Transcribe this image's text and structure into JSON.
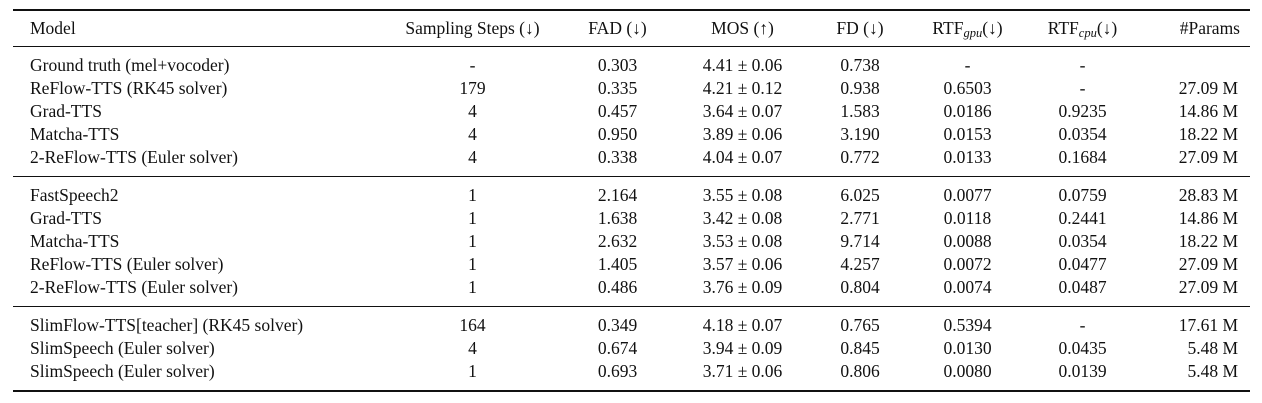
{
  "colors": {
    "text": "#111111",
    "background": "#ffffff",
    "rule": "#111111"
  },
  "table": {
    "columns": [
      {
        "id": "model",
        "parts": [
          {
            "text": "Model"
          }
        ]
      },
      {
        "id": "steps",
        "parts": [
          {
            "text": "Sampling Steps (↓)"
          }
        ]
      },
      {
        "id": "fad",
        "parts": [
          {
            "text": "FAD (↓)"
          }
        ]
      },
      {
        "id": "mos",
        "parts": [
          {
            "text": "MOS (↑)"
          }
        ]
      },
      {
        "id": "fd",
        "parts": [
          {
            "text": "FD (↓)"
          }
        ]
      },
      {
        "id": "rtf_gpu",
        "parts": [
          {
            "text": "RTF"
          },
          {
            "sub": "gpu"
          },
          {
            "text": "(↓)"
          }
        ]
      },
      {
        "id": "rtf_cpu",
        "parts": [
          {
            "text": "RTF"
          },
          {
            "sub": "cpu"
          },
          {
            "text": "(↓)"
          }
        ]
      },
      {
        "id": "params",
        "parts": [
          {
            "text": "#Params"
          }
        ]
      }
    ],
    "sections": [
      {
        "rows": [
          {
            "model": "Ground truth (mel+vocoder)",
            "steps": "-",
            "fad": "0.303",
            "mos": "4.41 ± 0.06",
            "fd": "0.738",
            "rtf_gpu": "-",
            "rtf_cpu": "-",
            "params": ""
          },
          {
            "model": "ReFlow-TTS (RK45 solver)",
            "steps": "179",
            "fad": "0.335",
            "mos": "4.21 ± 0.12",
            "fd": "0.938",
            "rtf_gpu": "0.6503",
            "rtf_cpu": "-",
            "params": "27.09 M"
          },
          {
            "model": "Grad-TTS",
            "steps": "4",
            "fad": "0.457",
            "mos": "3.64 ± 0.07",
            "fd": "1.583",
            "rtf_gpu": "0.0186",
            "rtf_cpu": "0.9235",
            "params": "14.86 M"
          },
          {
            "model": "Matcha-TTS",
            "steps": "4",
            "fad": "0.950",
            "mos": "3.89 ± 0.06",
            "fd": "3.190",
            "rtf_gpu": "0.0153",
            "rtf_cpu": "0.0354",
            "params": "18.22 M"
          },
          {
            "model": "2-ReFlow-TTS (Euler solver)",
            "steps": "4",
            "fad": "0.338",
            "mos": "4.04 ± 0.07",
            "fd": "0.772",
            "rtf_gpu": "0.0133",
            "rtf_cpu": "0.1684",
            "params": "27.09 M"
          }
        ]
      },
      {
        "rows": [
          {
            "model": "FastSpeech2",
            "steps": "1",
            "fad": "2.164",
            "mos": "3.55 ± 0.08",
            "fd": "6.025",
            "rtf_gpu": "0.0077",
            "rtf_cpu": "0.0759",
            "params": "28.83 M"
          },
          {
            "model": "Grad-TTS",
            "steps": "1",
            "fad": "1.638",
            "mos": "3.42 ± 0.08",
            "fd": "2.771",
            "rtf_gpu": "0.0118",
            "rtf_cpu": "0.2441",
            "params": "14.86 M"
          },
          {
            "model": "Matcha-TTS",
            "steps": "1",
            "fad": "2.632",
            "mos": "3.53 ± 0.08",
            "fd": "9.714",
            "rtf_gpu": "0.0088",
            "rtf_cpu": "0.0354",
            "params": "18.22 M"
          },
          {
            "model": "ReFlow-TTS (Euler solver)",
            "steps": "1",
            "fad": "1.405",
            "mos": "3.57 ± 0.06",
            "fd": "4.257",
            "rtf_gpu": "0.0072",
            "rtf_cpu": "0.0477",
            "params": "27.09 M"
          },
          {
            "model": "2-ReFlow-TTS (Euler solver)",
            "steps": "1",
            "fad": "0.486",
            "mos": "3.76 ± 0.09",
            "fd": "0.804",
            "rtf_gpu": "0.0074",
            "rtf_cpu": "0.0487",
            "params": "27.09 M"
          }
        ]
      },
      {
        "rows": [
          {
            "model": "SlimFlow-TTS[teacher] (RK45 solver)",
            "steps": "164",
            "fad": "0.349",
            "mos": "4.18 ± 0.07",
            "fd": "0.765",
            "rtf_gpu": "0.5394",
            "rtf_cpu": "-",
            "params": "17.61 M"
          },
          {
            "model": "SlimSpeech (Euler solver)",
            "steps": "4",
            "fad": "0.674",
            "mos": "3.94 ± 0.09",
            "fd": "0.845",
            "rtf_gpu": "0.0130",
            "rtf_cpu": "0.0435",
            "params": "5.48 M"
          },
          {
            "model": "SlimSpeech (Euler solver)",
            "steps": "1",
            "fad": "0.693",
            "mos": "3.71 ± 0.06",
            "fd": "0.806",
            "rtf_gpu": "0.0080",
            "rtf_cpu": "0.0139",
            "params": "5.48 M"
          }
        ]
      }
    ]
  }
}
